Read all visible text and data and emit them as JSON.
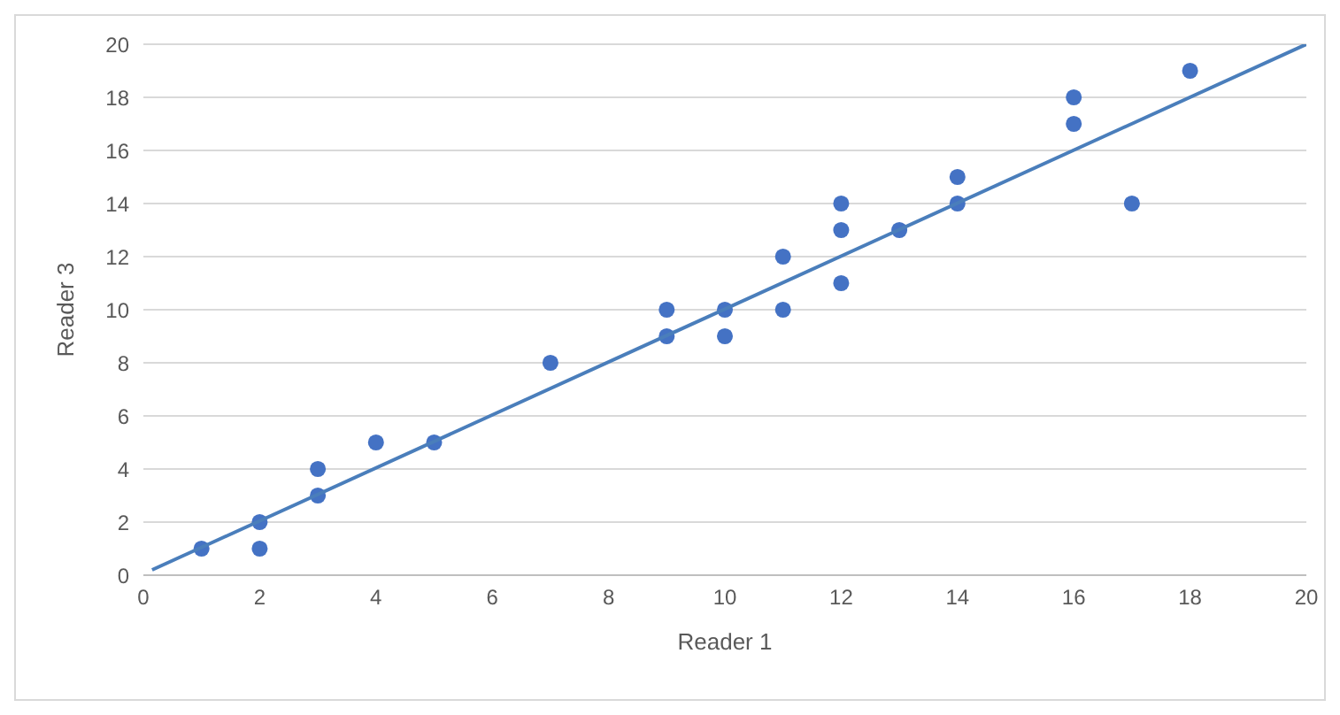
{
  "chart_data": {
    "type": "scatter",
    "xlabel": "Reader 1",
    "ylabel": "Reader 3",
    "xlim": [
      0,
      20
    ],
    "ylim": [
      0,
      20
    ],
    "xticks": [
      0,
      2,
      4,
      6,
      8,
      10,
      12,
      14,
      16,
      18,
      20
    ],
    "yticks": [
      0,
      2,
      4,
      6,
      8,
      10,
      12,
      14,
      16,
      18,
      20
    ],
    "grid": "y",
    "marker": "circle",
    "series": [
      {
        "color": "#4472c4",
        "x": [
          1,
          2,
          2,
          3,
          3,
          4,
          5,
          7,
          9,
          9,
          10,
          10,
          11,
          11,
          12,
          12,
          12,
          13,
          14,
          14,
          16,
          16,
          17,
          18
        ],
        "values": [
          1,
          2,
          1,
          4,
          3,
          5,
          5,
          8,
          10,
          9,
          10,
          9,
          12,
          10,
          14,
          13,
          11,
          13,
          15,
          14,
          18,
          17,
          14,
          19
        ]
      },
      {
        "type": "line",
        "color": "#4a7ebb",
        "marker": "none",
        "x": [
          0.15,
          20
        ],
        "values": [
          0.2,
          20
        ]
      }
    ]
  }
}
